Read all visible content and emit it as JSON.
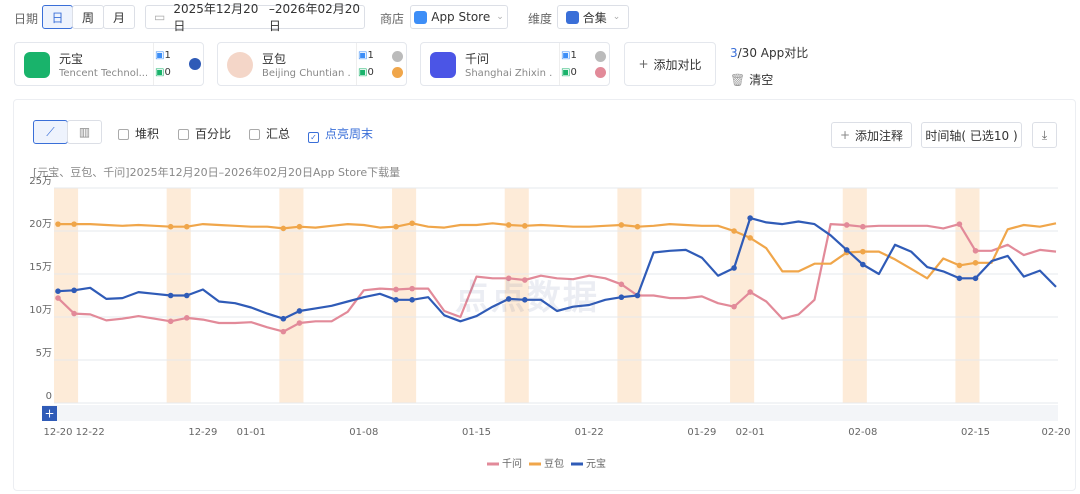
{
  "filters": {
    "date_label": "日期",
    "periods": [
      "日",
      "周",
      "月"
    ],
    "date_start": "2025年12月20日",
    "date_end": "–2026年02月20日",
    "store_label": "商店",
    "store": "App Store",
    "dimension_label": "维度",
    "dimension": "合集"
  },
  "apps": [
    {
      "name": "元宝",
      "company": "Tencent Technol...",
      "a": 1,
      "b": 0
    },
    {
      "name": "豆包",
      "company": "Beijing Chuntian ...",
      "a": 1,
      "b": 0
    },
    {
      "name": "千问",
      "company": "Shanghai Zhixin ...",
      "a": 1,
      "b": 0
    }
  ],
  "add_compare": "添加对比",
  "compare_count": "3",
  "compare_total": "/30 App对比",
  "clear": "清空",
  "toolbar": {
    "options": [
      "堆积",
      "百分比",
      "汇总",
      "点亮周末"
    ],
    "add_note": "添加注释",
    "timeline": "时间轴( 已选10 )"
  },
  "watermark": "点点数据",
  "chart_data": {
    "type": "line",
    "subtitle": "[元宝、豆包、千问]2025年12月20日–2026年02月20日App Store下载量",
    "categories": [
      "12-20",
      null,
      "12-22",
      null,
      null,
      null,
      null,
      null,
      null,
      "12-29",
      null,
      null,
      "01-01",
      null,
      null,
      null,
      null,
      null,
      null,
      "01-08",
      null,
      null,
      null,
      null,
      null,
      null,
      "01-15",
      null,
      null,
      null,
      null,
      null,
      null,
      "01-22",
      null,
      null,
      null,
      null,
      null,
      null,
      "01-29",
      null,
      null,
      "02-01",
      null,
      null,
      null,
      null,
      null,
      null,
      "02-08",
      null,
      null,
      null,
      null,
      null,
      null,
      "02-15",
      null,
      null,
      null,
      null,
      "02-20"
    ],
    "ylim": [
      0,
      25
    ],
    "yticks": [
      0,
      {
        "value": 5,
        "label": "5万"
      },
      {
        "value": 10,
        "label": "10万"
      },
      {
        "value": 15,
        "label": "15万"
      },
      {
        "value": 20,
        "label": "20万"
      },
      {
        "value": 25,
        "label": "25万"
      }
    ],
    "grid": true,
    "weekend_bands": [
      [
        0,
        1
      ],
      [
        7,
        8
      ],
      [
        14,
        15
      ],
      [
        21,
        22
      ],
      [
        28,
        29
      ],
      [
        35,
        36
      ],
      [
        42,
        43
      ],
      [
        49,
        50
      ],
      [
        56,
        57
      ]
    ],
    "weekend_color": "#fdebd8",
    "series": [
      {
        "name": "千问",
        "color": "#e28a99",
        "values": [
          12.2,
          10.4,
          10.3,
          9.6,
          9.8,
          10.1,
          9.8,
          9.5,
          9.9,
          9.7,
          9.3,
          9.3,
          9.4,
          8.8,
          8.3,
          9.3,
          9.5,
          9.5,
          10.6,
          13.1,
          13.3,
          13.2,
          13.3,
          13.3,
          10.7,
          10.0,
          14.7,
          14.5,
          14.5,
          14.3,
          14.8,
          14.5,
          14.4,
          14.8,
          14.5,
          13.8,
          12.5,
          12.5,
          12.2,
          12.2,
          12.4,
          11.6,
          11.2,
          12.9,
          11.8,
          9.8,
          10.3,
          12.0,
          20.8,
          20.7,
          20.5,
          20.6,
          20.6,
          20.6,
          20.6,
          20.3,
          20.8,
          17.7,
          17.7,
          18.4,
          17.2,
          17.8,
          17.6
        ]
      },
      {
        "name": "豆包",
        "color": "#f0a64a",
        "values": [
          20.8,
          20.8,
          20.8,
          20.7,
          20.6,
          20.7,
          20.6,
          20.5,
          20.5,
          20.8,
          20.7,
          20.6,
          20.5,
          20.5,
          20.3,
          20.5,
          20.4,
          20.6,
          20.8,
          20.7,
          20.4,
          20.5,
          20.9,
          20.5,
          20.4,
          20.7,
          20.7,
          20.9,
          20.7,
          20.6,
          20.7,
          20.6,
          20.5,
          20.5,
          20.6,
          20.7,
          20.5,
          20.6,
          20.8,
          20.7,
          20.6,
          20.6,
          20.0,
          19.2,
          18.0,
          15.3,
          15.3,
          16.2,
          16.2,
          17.5,
          17.6,
          17.6,
          16.7,
          15.6,
          14.5,
          16.8,
          16.0,
          16.3,
          16.3,
          20.2,
          20.7,
          20.5,
          20.9
        ]
      },
      {
        "name": "元宝",
        "color": "#2f5bb7",
        "values": [
          13.0,
          13.1,
          13.4,
          12.1,
          12.2,
          12.9,
          12.7,
          12.5,
          12.5,
          13.2,
          11.8,
          11.6,
          11.1,
          10.4,
          9.8,
          10.7,
          11.0,
          11.3,
          11.8,
          12.3,
          12.7,
          12.0,
          12.0,
          12.3,
          10.2,
          9.5,
          10.1,
          11.2,
          12.1,
          12.0,
          12.0,
          10.7,
          11.2,
          11.4,
          12.0,
          12.3,
          12.5,
          17.5,
          17.7,
          17.8,
          16.9,
          14.8,
          15.7,
          21.5,
          21.0,
          20.8,
          21.1,
          20.8,
          19.5,
          17.8,
          16.1,
          15.0,
          18.4,
          17.6,
          15.8,
          15.3,
          14.5,
          14.5,
          16.5,
          17.1,
          14.7,
          15.4,
          13.5
        ]
      }
    ]
  }
}
